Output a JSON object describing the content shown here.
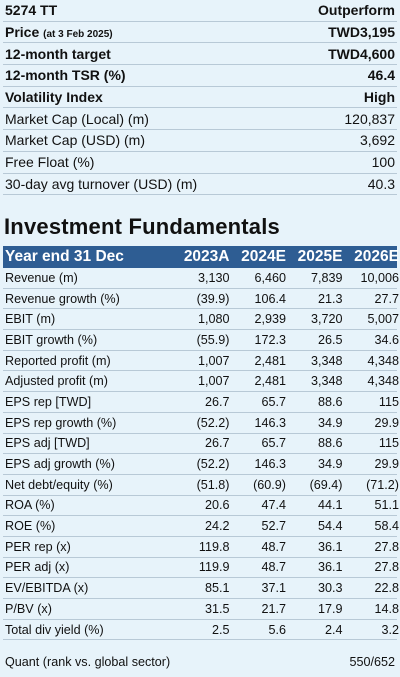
{
  "summary": {
    "ticker": "5274 TT",
    "rating": "Outperform",
    "price_label": "Price",
    "price_date": "(at 3 Feb 2025)",
    "price_value": "TWD3,195",
    "target_label": "12-month target",
    "target_value": "TWD4,600",
    "tsr_label": "12-month TSR (%)",
    "tsr_value": "46.4",
    "vol_label": "Volatility Index",
    "vol_value": "High",
    "mcap_local_label": "Market Cap (Local) (m)",
    "mcap_local_value": "120,837",
    "mcap_usd_label": "Market Cap (USD) (m)",
    "mcap_usd_value": "3,692",
    "float_label": "Free Float (%)",
    "float_value": "100",
    "turnover_label": "30-day avg turnover (USD) (m)",
    "turnover_value": "40.3"
  },
  "fundamentals": {
    "title": "Investment Fundamentals",
    "header": [
      "Year end 31 Dec",
      "2023A",
      "2024E",
      "2025E",
      "2026E"
    ],
    "rows": [
      [
        "Revenue (m)",
        "3,130",
        "6,460",
        "7,839",
        "10,006"
      ],
      [
        "Revenue growth (%)",
        "(39.9)",
        "106.4",
        "21.3",
        "27.7"
      ],
      [
        "EBIT (m)",
        "1,080",
        "2,939",
        "3,720",
        "5,007"
      ],
      [
        "EBIT growth (%)",
        "(55.9)",
        "172.3",
        "26.5",
        "34.6"
      ],
      [
        "Reported profit (m)",
        "1,007",
        "2,481",
        "3,348",
        "4,348"
      ],
      [
        "Adjusted profit (m)",
        "1,007",
        "2,481",
        "3,348",
        "4,348"
      ],
      [
        "EPS rep [TWD]",
        "26.7",
        "65.7",
        "88.6",
        "115"
      ],
      [
        "EPS rep growth (%)",
        "(52.2)",
        "146.3",
        "34.9",
        "29.9"
      ],
      [
        "EPS adj [TWD]",
        "26.7",
        "65.7",
        "88.6",
        "115"
      ],
      [
        "EPS adj growth (%)",
        "(52.2)",
        "146.3",
        "34.9",
        "29.9"
      ],
      [
        "Net debt/equity (%)",
        "(51.8)",
        "(60.9)",
        "(69.4)",
        "(71.2)"
      ],
      [
        "ROA (%)",
        "20.6",
        "47.4",
        "44.1",
        "51.1"
      ],
      [
        "ROE (%)",
        "24.2",
        "52.7",
        "54.4",
        "58.4"
      ],
      [
        "PER rep (x)",
        "119.8",
        "48.7",
        "36.1",
        "27.8"
      ],
      [
        "PER adj (x)",
        "119.9",
        "48.7",
        "36.1",
        "27.8"
      ],
      [
        "EV/EBITDA (x)",
        "85.1",
        "37.1",
        "30.3",
        "22.8"
      ],
      [
        "P/BV (x)",
        "31.5",
        "21.7",
        "17.9",
        "14.8"
      ],
      [
        "Total div yield (%)",
        "2.5",
        "5.6",
        "2.4",
        "3.2"
      ]
    ],
    "quant_label": "Quant (rank vs. global sector)",
    "quant_value": "550/652"
  },
  "colors": {
    "background": "#e7f3fa",
    "header_bg": "#2e5d93",
    "divider": "#b8c9d6"
  }
}
